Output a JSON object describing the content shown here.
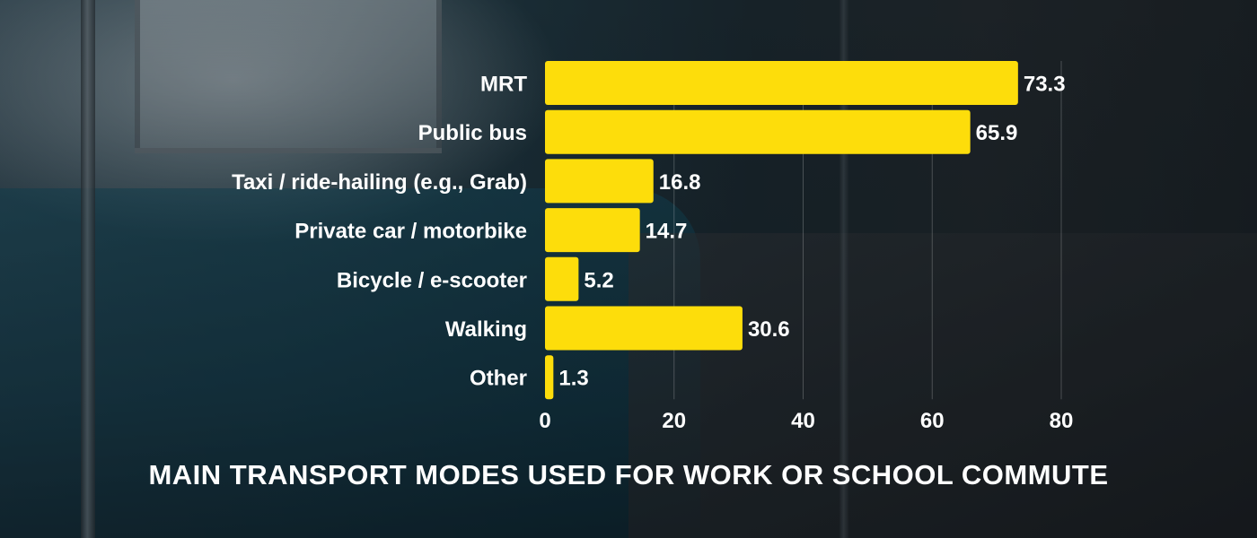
{
  "chart_data": {
    "type": "bar",
    "orientation": "horizontal",
    "title": "MAIN TRANSPORT MODES USED FOR WORK OR SCHOOL COMMUTE",
    "categories": [
      "MRT",
      "Public bus",
      "Taxi / ride-hailing (e.g., Grab)",
      "Private car / motorbike",
      "Bicycle / e-scooter",
      "Walking",
      "Other"
    ],
    "values": [
      73.3,
      65.9,
      16.8,
      14.7,
      5.2,
      30.6,
      1.3
    ],
    "value_labels": [
      "73.3",
      "65.9",
      "16.8",
      "14.7",
      "5.2",
      "30.6",
      "1.3"
    ],
    "xlim": [
      0,
      80
    ],
    "xticks": [
      0,
      20,
      40,
      60,
      80
    ],
    "xtick_labels": [
      "0",
      "20",
      "40",
      "60",
      "80"
    ],
    "xlabel": "",
    "ylabel": "",
    "grid": "vertical",
    "legend": "none",
    "bar_color": "#FDDD0B",
    "text_color": "#FFFFFF"
  }
}
